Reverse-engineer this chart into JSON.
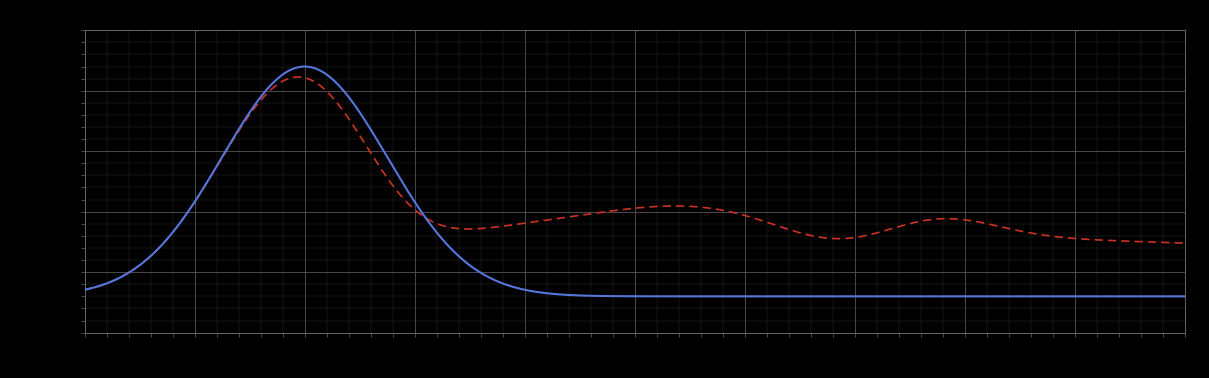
{
  "background_color": "#000000",
  "plot_bg_color": "#000000",
  "blue_line_color": "#5577dd",
  "red_line_color": "#cc3322",
  "figsize": [
    12.09,
    3.78
  ],
  "dpi": 100,
  "xlim": [
    0,
    100
  ],
  "ylim": [
    0,
    100
  ],
  "spine_color": "#666666",
  "major_grid_color": "#555555",
  "minor_grid_color": "#333333"
}
